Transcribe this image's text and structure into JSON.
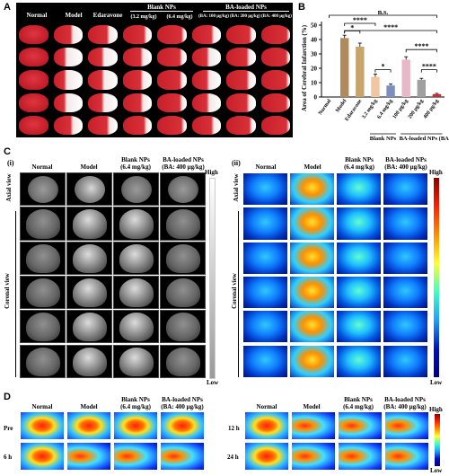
{
  "panelA": {
    "label": "A",
    "columns": [
      "Normal",
      "Model",
      "Edaravone"
    ],
    "blank_group": {
      "title": "Blank NPs",
      "doses": [
        "(3.2 mg/kg)",
        "(6.4 mg/kg)"
      ]
    },
    "ba_group": {
      "title": "BA-loaded NPs",
      "doses": [
        "(BA: 100 μg/kg)",
        "(BA: 200 μg/kg)",
        "(BA: 400 μg/kg)"
      ]
    }
  },
  "panelB": {
    "label": "B",
    "ylabel": "Area of Cerebral Infarction (%)",
    "ns_label": "n.s.",
    "sig": [
      "*",
      "****",
      "****",
      "*",
      "****",
      "****"
    ],
    "group_labels": [
      "Blank NPs",
      "BA-loaded NPs (BA)"
    ],
    "chart_data": {
      "type": "bar",
      "categories": [
        "Normal",
        "Model",
        "Edaravone",
        "3.2 mg/kg",
        "6.4 mg/kg",
        "100 μg/kg",
        "200 μg/kg",
        "400 μg/kg"
      ],
      "values": [
        0,
        41,
        35,
        14,
        8,
        26,
        12,
        2
      ],
      "errors": [
        0,
        2,
        2.5,
        2,
        1,
        2,
        1,
        0.5
      ],
      "colors": [
        "#8b5a2b",
        "#b08a5a",
        "#c6a46c",
        "#f2c6a0",
        "#7a8fc0",
        "#e8b8c8",
        "#a0a0a0",
        "#c0303a"
      ],
      "ylim": [
        0,
        50
      ],
      "yticks": [
        0,
        10,
        20,
        30,
        40,
        50
      ],
      "ylabel": "Area of Cerebral Infarction (%)"
    }
  },
  "panelC": {
    "label": "C",
    "sub_i": "(i)",
    "sub_ii": "(ii)",
    "headers": [
      "Normal",
      "Model",
      "Blank NPs",
      "BA-loaded NPs"
    ],
    "header_sub": [
      "",
      "",
      "(6.4 mg/kg)",
      "(BA: 400 μg/kg)"
    ],
    "axial": "Axial view",
    "coronal": "Coronal view",
    "high": "High",
    "low": "Low"
  },
  "panelD": {
    "label": "D",
    "headers": [
      "Normal",
      "Model",
      "Blank NPs",
      "BA-loaded NPs"
    ],
    "header_sub": [
      "",
      "",
      "(6.4 mg/kg)",
      "(BA: 400 μg/kg)"
    ],
    "left_rows": [
      "Pre",
      "6 h"
    ],
    "right_rows": [
      "12 h",
      "24 h"
    ],
    "high": "High",
    "low": "Low"
  }
}
